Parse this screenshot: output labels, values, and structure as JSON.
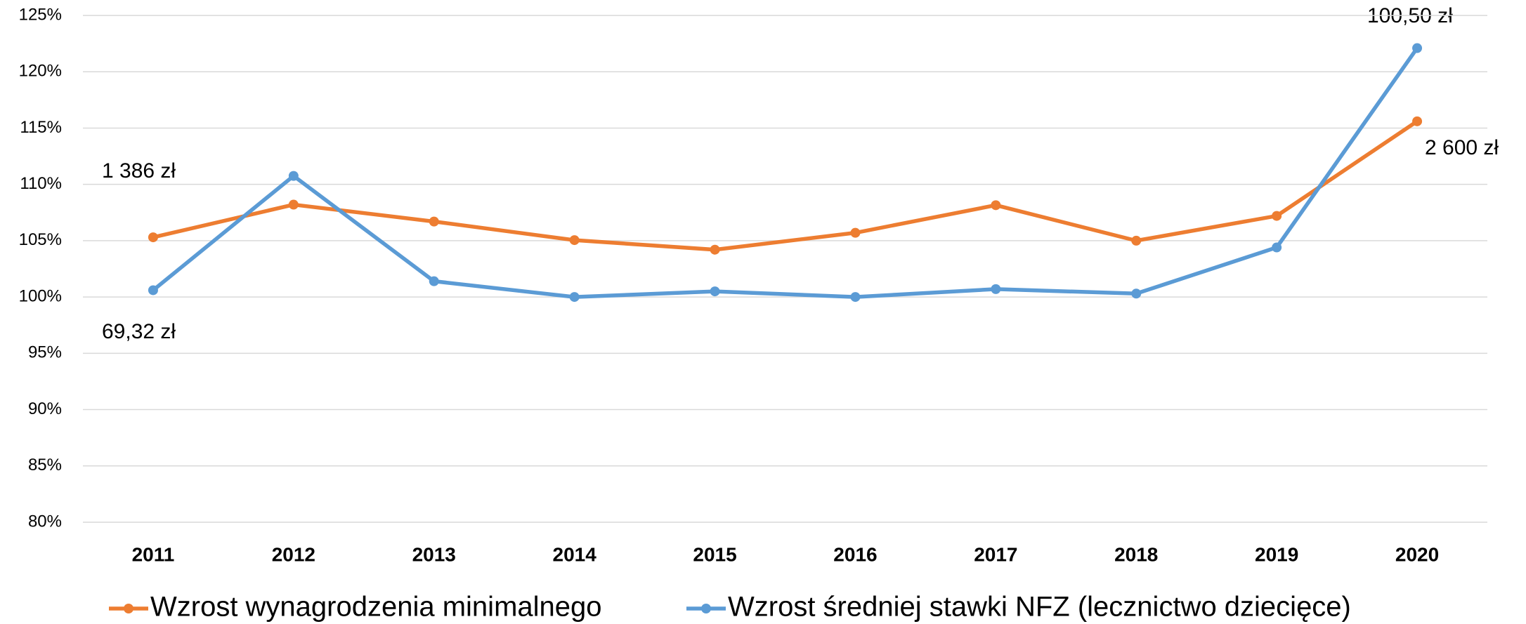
{
  "chart_data": {
    "type": "line",
    "categories": [
      "2011",
      "2012",
      "2013",
      "2014",
      "2015",
      "2016",
      "2017",
      "2018",
      "2019",
      "2020"
    ],
    "series": [
      {
        "name": "Wzrost wynagrodzenia minimalnego",
        "color": "#ed7d31",
        "values": [
          105.3,
          108.2,
          106.7,
          105.05,
          104.2,
          105.7,
          108.15,
          105.0,
          107.2,
          115.6
        ]
      },
      {
        "name": "Wzrost średniej stawki NFZ (lecznictwo dziecięce)",
        "color": "#5b9bd5",
        "values": [
          100.6,
          110.75,
          101.4,
          100.0,
          100.5,
          100.0,
          100.7,
          100.3,
          104.4,
          122.1
        ]
      }
    ],
    "ylim": [
      80,
      125
    ],
    "yticks": [
      {
        "value": 80,
        "label": "80%"
      },
      {
        "value": 85,
        "label": "85%"
      },
      {
        "value": 90,
        "label": "90%"
      },
      {
        "value": 95,
        "label": "95%"
      },
      {
        "value": 100,
        "label": "100%"
      },
      {
        "value": 105,
        "label": "105%"
      },
      {
        "value": 110,
        "label": "110%"
      },
      {
        "value": 115,
        "label": "115%"
      },
      {
        "value": 120,
        "label": "120%"
      },
      {
        "value": 125,
        "label": "125%"
      }
    ],
    "grid": true,
    "legend": "bottom",
    "annotations": [
      "1 386 zł",
      "69,32 zł",
      "100,50 zł",
      "2 600 zł"
    ]
  }
}
